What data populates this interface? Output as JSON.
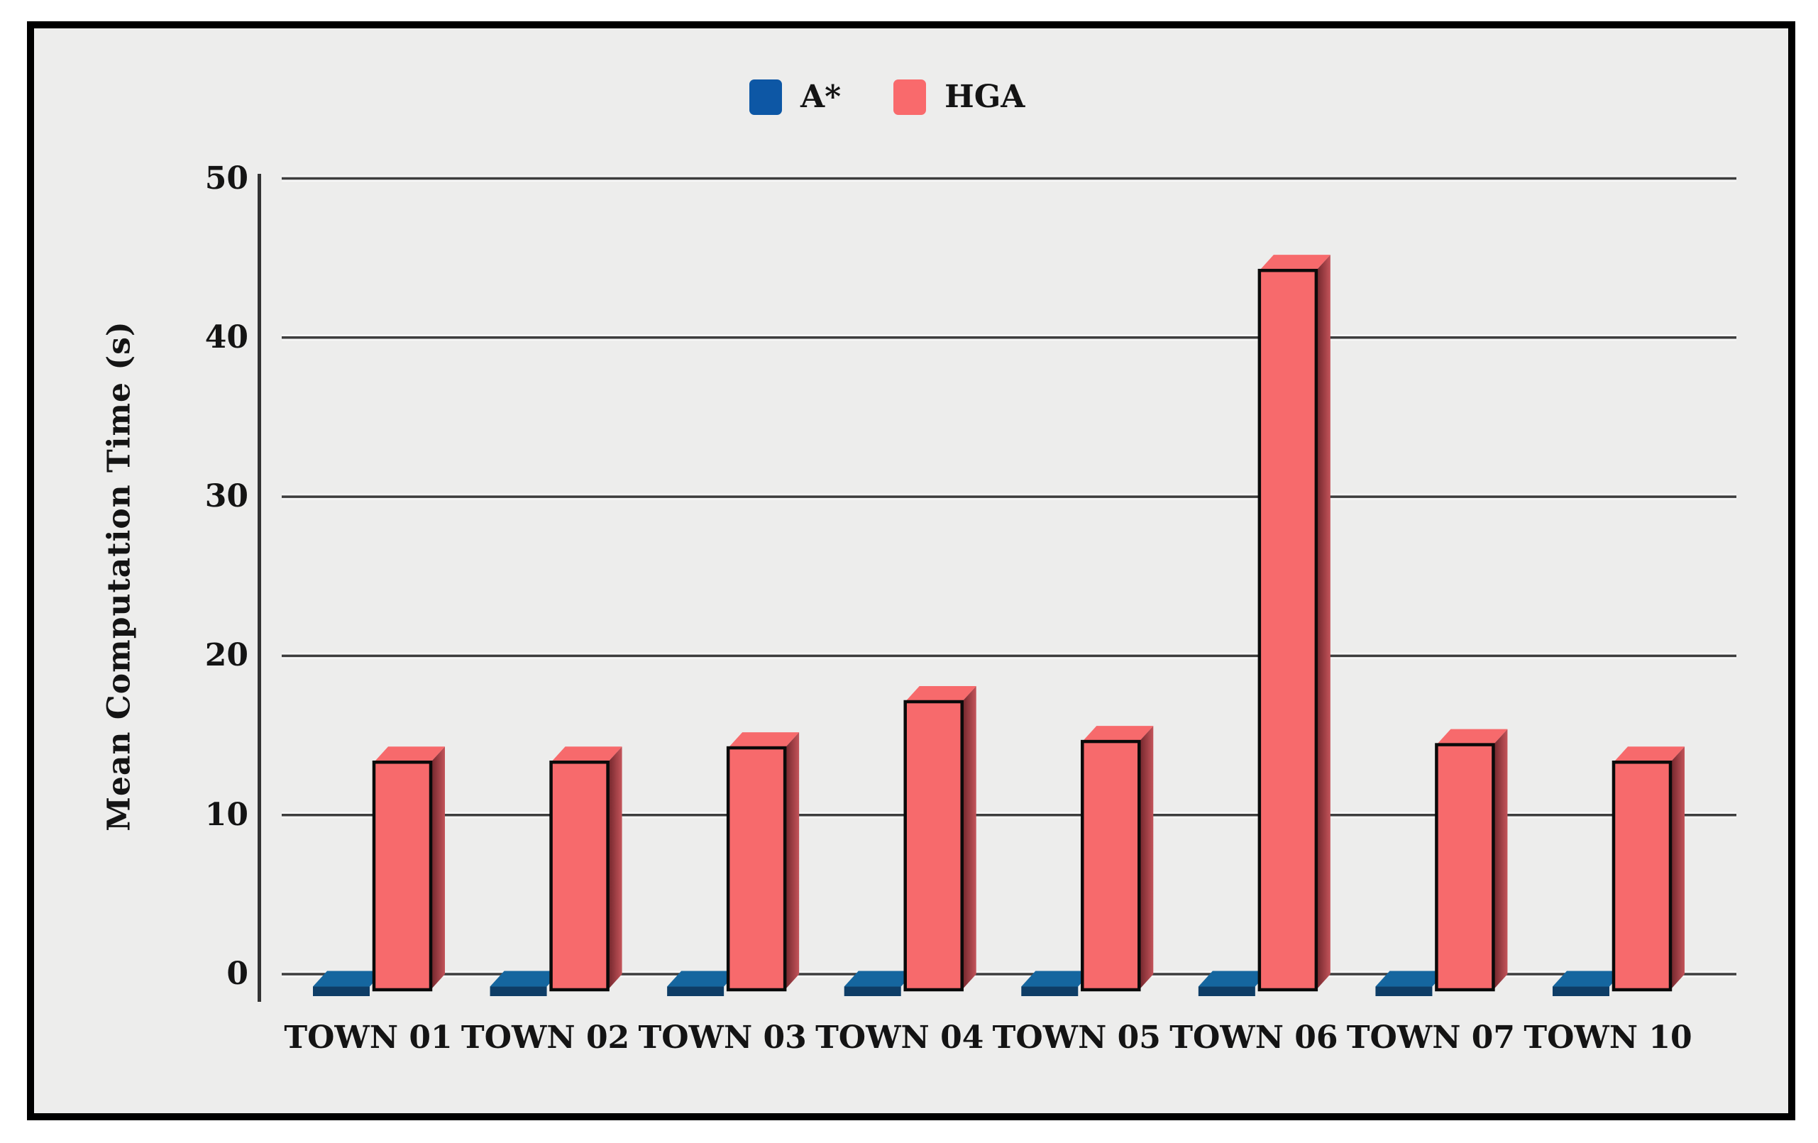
{
  "window": {
    "background_color": "#ffffff",
    "frame_color": "#000000",
    "panel_color": "#ededec",
    "gridline_color": "#3d3d3d",
    "axis_color": "#333333",
    "text_color": "#141414"
  },
  "legend": {
    "items": [
      {
        "label": "A*",
        "swatch_color": "#0d57a5"
      },
      {
        "label": "HGA",
        "swatch_color": "#f96a6c"
      }
    ]
  },
  "chart_data": {
    "type": "bar",
    "style": "3d-bars",
    "title": "",
    "xlabel": "",
    "ylabel": "Mean Computation Time (s)",
    "categories": [
      "TOWN 01",
      "TOWN 02",
      "TOWN 03",
      "TOWN 04",
      "TOWN 05",
      "TOWN 06",
      "TOWN 07",
      "TOWN 10"
    ],
    "series": [
      {
        "name": "A*",
        "color": "#0d57a5",
        "color_top": "#15669f",
        "color_front": "#0e3d66",
        "values": [
          0.2,
          0.2,
          0.2,
          0.2,
          0.2,
          0.2,
          0.2,
          0.2
        ]
      },
      {
        "name": "HGA",
        "color": "#f76a6c",
        "color_side_dark": "#6e242a",
        "color_side_light": "#c4545a",
        "outline_color": "#0a0a0a",
        "values": [
          14.3,
          14.3,
          15.2,
          18.1,
          15.6,
          45.2,
          15.4,
          14.3
        ]
      }
    ],
    "ylim": [
      0,
      50
    ],
    "yticks": [
      0,
      10,
      20,
      30,
      40,
      50
    ],
    "grid": true,
    "legend_position": "top-center"
  }
}
